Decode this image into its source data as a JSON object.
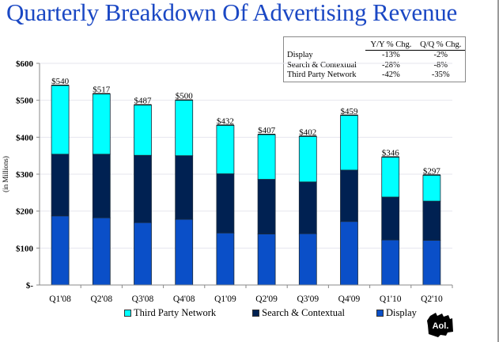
{
  "title": "Quarterly Breakdown Of Advertising Revenue",
  "summary_table": {
    "headers": [
      "",
      "Y/Y % Chg.",
      "Q/Q % Chg."
    ],
    "rows": [
      {
        "label": "Display",
        "yy": "-13%",
        "qq": "-2%"
      },
      {
        "label": "Search & Contextual",
        "yy": "-28%",
        "qq": "-8%"
      },
      {
        "label": "Third Party Network",
        "yy": "-42%",
        "qq": "-35%"
      }
    ]
  },
  "logo_text": "Aol.",
  "chart_data": {
    "type": "bar",
    "stacked": true,
    "title": "Quarterly Breakdown Of Advertising Revenue",
    "xlabel": "",
    "ylabel": "(in Millions)",
    "ylim": [
      0,
      600
    ],
    "yticks": [
      0,
      100,
      200,
      300,
      400,
      500,
      600
    ],
    "ytick_labels": [
      "$-",
      "$100",
      "$200",
      "$300",
      "$400",
      "$500",
      "$600"
    ],
    "grid": true,
    "legend_position": "bottom",
    "categories": [
      "Q1'08",
      "Q2'08",
      "Q3'08",
      "Q4'08",
      "Q1'09",
      "Q2'09",
      "Q3'09",
      "Q4'09",
      "Q1'10",
      "Q2'10"
    ],
    "series": [
      {
        "name": "Display",
        "color": "#0a4fc8",
        "values": [
          187,
          182,
          169,
          178,
          141,
          138,
          139,
          172,
          122,
          121
        ]
      },
      {
        "name": "Search & Contextual",
        "color": "#002152",
        "values": [
          167,
          172,
          182,
          172,
          160,
          148,
          140,
          139,
          116,
          106
        ]
      },
      {
        "name": "Third Party Network",
        "color": "#00ffff",
        "values": [
          186,
          163,
          136,
          150,
          131,
          121,
          123,
          148,
          108,
          70
        ]
      }
    ],
    "totals": [
      540,
      517,
      487,
      500,
      432,
      407,
      402,
      459,
      346,
      297
    ],
    "total_labels": [
      "$540",
      "$517",
      "$487",
      "$500",
      "$432",
      "$407",
      "$402",
      "$459",
      "$346",
      "$297"
    ],
    "legend": [
      "Third Party Network",
      "Search & Contextual",
      "Display"
    ]
  }
}
